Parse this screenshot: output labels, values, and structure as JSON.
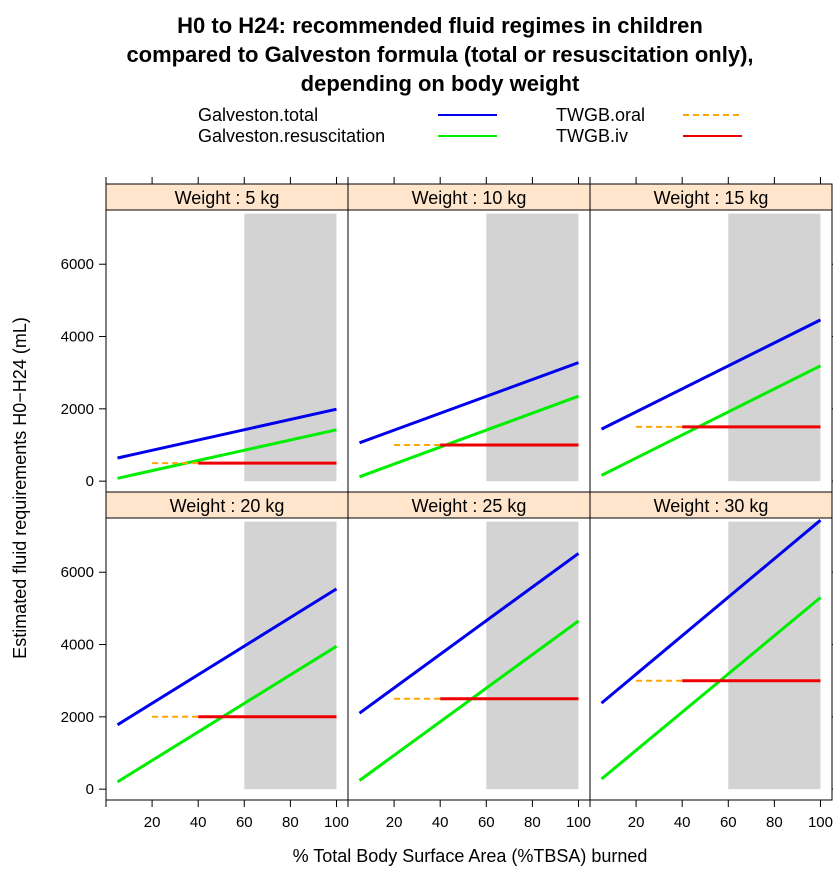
{
  "chart_data": {
    "type": "line",
    "title_lines": [
      "H0 to H24: recommended fluid regimes in children",
      "compared to Galveston formula (total or resuscitation only),",
      "depending on body weight"
    ],
    "xlabel": "% Total Body Surface Area (%TBSA) burned",
    "ylabel": "Estimated fluid requirements H0−H24 (mL)",
    "xlim": [
      0,
      105
    ],
    "ylim": [
      -300,
      7500
    ],
    "x_ticks": [
      20,
      40,
      60,
      80,
      100
    ],
    "y_ticks": [
      0,
      2000,
      4000,
      6000
    ],
    "shaded_region": {
      "x_from": 60,
      "x_to": 100
    },
    "colors": {
      "Galveston.total": "#0000ee",
      "Galveston.resuscitation": "#00ee00",
      "TWGB.oral": "#ffa500",
      "TWGB.iv": "#ee0000",
      "strip": "#ffe5cc",
      "shade": "#d3d3d3"
    },
    "legend": {
      "placement": "top",
      "entries": [
        {
          "name": "Galveston.total",
          "style": "solid"
        },
        {
          "name": "TWGB.oral",
          "style": "dashed"
        },
        {
          "name": "Galveston.resuscitation",
          "style": "solid"
        },
        {
          "name": "TWGB.iv",
          "style": "solid"
        }
      ]
    },
    "panels": [
      {
        "strip": "Weight : 5 kg",
        "series": [
          {
            "name": "Galveston.total",
            "x": [
              5,
              100
            ],
            "y": [
              640,
              1990
            ]
          },
          {
            "name": "Galveston.resuscitation",
            "x": [
              5,
              100
            ],
            "y": [
              80,
              1420
            ]
          },
          {
            "name": "TWGB.oral",
            "x": [
              20,
              40
            ],
            "y": [
              500,
              500
            ]
          },
          {
            "name": "TWGB.iv",
            "x": [
              40,
              100
            ],
            "y": [
              500,
              500
            ]
          }
        ]
      },
      {
        "strip": "Weight : 10 kg",
        "series": [
          {
            "name": "Galveston.total",
            "x": [
              5,
              100
            ],
            "y": [
              1060,
              3280
            ]
          },
          {
            "name": "Galveston.resuscitation",
            "x": [
              5,
              100
            ],
            "y": [
              120,
              2350
            ]
          },
          {
            "name": "TWGB.oral",
            "x": [
              20,
              40
            ],
            "y": [
              1000,
              1000
            ]
          },
          {
            "name": "TWGB.iv",
            "x": [
              40,
              100
            ],
            "y": [
              1000,
              1000
            ]
          }
        ]
      },
      {
        "strip": "Weight : 15 kg",
        "series": [
          {
            "name": "Galveston.total",
            "x": [
              5,
              100
            ],
            "y": [
              1440,
              4460
            ]
          },
          {
            "name": "Galveston.resuscitation",
            "x": [
              5,
              100
            ],
            "y": [
              160,
              3190
            ]
          },
          {
            "name": "TWGB.oral",
            "x": [
              20,
              40
            ],
            "y": [
              1500,
              1500
            ]
          },
          {
            "name": "TWGB.iv",
            "x": [
              40,
              100
            ],
            "y": [
              1500,
              1500
            ]
          }
        ]
      },
      {
        "strip": "Weight : 20 kg",
        "series": [
          {
            "name": "Galveston.total",
            "x": [
              5,
              100
            ],
            "y": [
              1780,
              5540
            ]
          },
          {
            "name": "Galveston.resuscitation",
            "x": [
              5,
              100
            ],
            "y": [
              200,
              3950
            ]
          },
          {
            "name": "TWGB.oral",
            "x": [
              20,
              40
            ],
            "y": [
              2000,
              2000
            ]
          },
          {
            "name": "TWGB.iv",
            "x": [
              40,
              100
            ],
            "y": [
              2000,
              2000
            ]
          }
        ]
      },
      {
        "strip": "Weight : 25 kg",
        "series": [
          {
            "name": "Galveston.total",
            "x": [
              5,
              100
            ],
            "y": [
              2100,
              6520
            ]
          },
          {
            "name": "Galveston.resuscitation",
            "x": [
              5,
              100
            ],
            "y": [
              240,
              4650
            ]
          },
          {
            "name": "TWGB.oral",
            "x": [
              20,
              40
            ],
            "y": [
              2500,
              2500
            ]
          },
          {
            "name": "TWGB.iv",
            "x": [
              40,
              100
            ],
            "y": [
              2500,
              2500
            ]
          }
        ]
      },
      {
        "strip": "Weight : 30 kg",
        "series": [
          {
            "name": "Galveston.total",
            "x": [
              5,
              100
            ],
            "y": [
              2380,
              7440
            ]
          },
          {
            "name": "Galveston.resuscitation",
            "x": [
              5,
              100
            ],
            "y": [
              280,
              5300
            ]
          },
          {
            "name": "TWGB.oral",
            "x": [
              20,
              40
            ],
            "y": [
              3000,
              3000
            ]
          },
          {
            "name": "TWGB.iv",
            "x": [
              40,
              100
            ],
            "y": [
              3000,
              3000
            ]
          }
        ]
      }
    ]
  }
}
